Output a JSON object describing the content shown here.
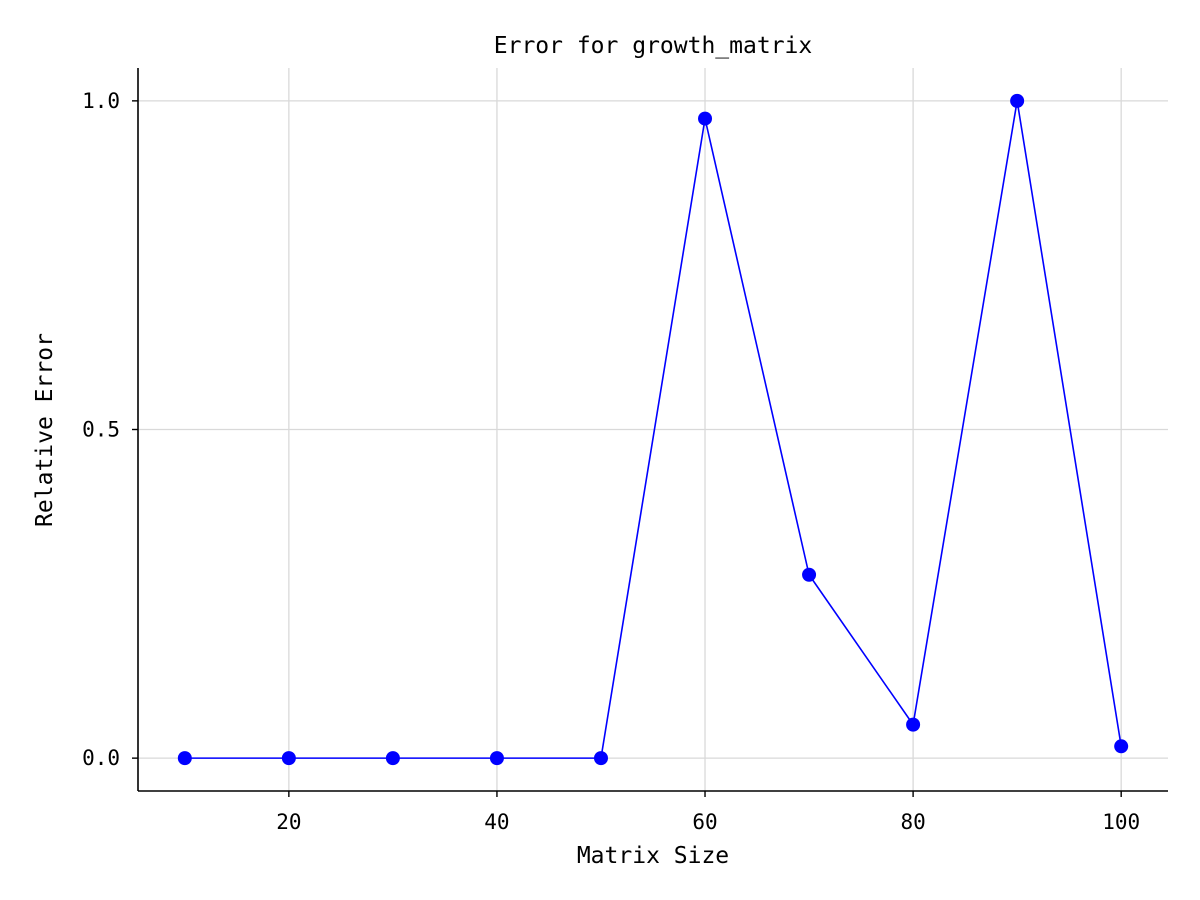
{
  "chart_data": {
    "type": "line",
    "title": "Error for growth_matrix",
    "xlabel": "Matrix Size",
    "ylabel": "Relative Error",
    "x": [
      10,
      20,
      30,
      40,
      50,
      60,
      70,
      80,
      90,
      100
    ],
    "series": [
      {
        "values": [
          0.0,
          0.0,
          0.0,
          0.0,
          0.0,
          0.973,
          0.279,
          0.051,
          1.0,
          0.018
        ],
        "color": "#0000ff",
        "marker": "circle"
      }
    ],
    "xlim": [
      5.5,
      104.5
    ],
    "ylim": [
      -0.05,
      1.05
    ],
    "xticks": [
      20,
      40,
      60,
      80,
      100
    ],
    "xtick_labels": [
      "20",
      "40",
      "60",
      "80",
      "100"
    ],
    "yticks": [
      0.0,
      0.5,
      1.0
    ],
    "ytick_labels": [
      "0.0",
      "0.5",
      "1.0"
    ],
    "grid": true,
    "spines": "left-bottom"
  }
}
